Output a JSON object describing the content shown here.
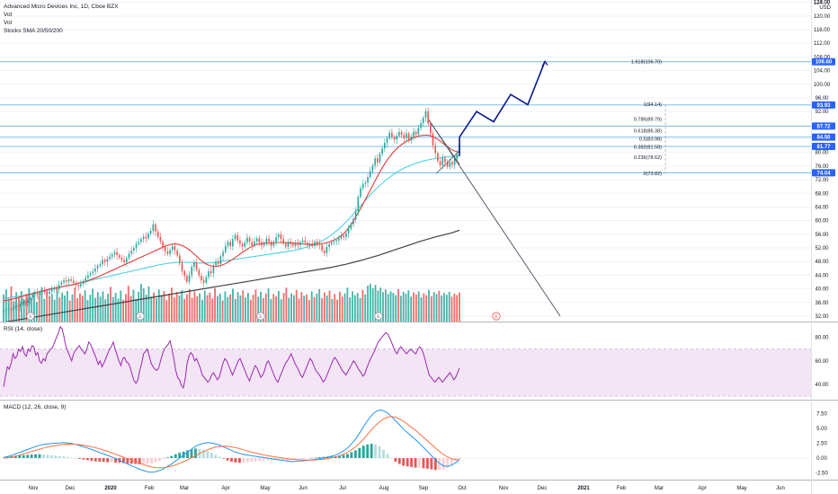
{
  "header": {
    "title": "Advanced Micro Devices Inc, 1D, Cboe BZX",
    "currency": "USD",
    "indicators": [
      "Vol",
      "Vol",
      "Stocks SMA 20/50/200"
    ]
  },
  "panes": {
    "rsi_label": "RSI (14, close)",
    "macd_label": "MACD (12, 26, close, 9)"
  },
  "colors": {
    "up": "#26a69a",
    "down": "#ef5350",
    "line_blue": "#2196f3",
    "sma_fast": "#e53935",
    "sma_mid": "#4dd0e1",
    "sma_slow": "#424242",
    "projection": "#0d1a8c",
    "rsi_line": "#9c27b0",
    "rsi_band": "#f3e5f5",
    "level_line": "#6fb8e8",
    "axis_badge": "#2962ff"
  },
  "chart_data": [
    {
      "type": "line",
      "title": "Advanced Micro Devices Inc, 1D, Cboe BZX",
      "x_tick_labels": [
        "Nov",
        "Dec",
        "2020",
        "Feb",
        "Mar",
        "Apr",
        "May",
        "Jun",
        "Jul",
        "Aug",
        "Sep",
        "Oct",
        "Nov",
        "Dec",
        "2021",
        "Feb",
        "Mar",
        "Apr",
        "May",
        "Jun"
      ],
      "y_tick_labels": [
        "32.00",
        "36.00",
        "40.00",
        "44.00",
        "48.00",
        "52.00",
        "56.00",
        "60.00",
        "64.00",
        "68.00",
        "72.00",
        "76.00",
        "80.00",
        "84.00",
        "88.00",
        "92.00",
        "96.00",
        "100.00",
        "104.00",
        "108.00",
        "112.00",
        "116.00",
        "120.00",
        "124.00"
      ],
      "ylim": [
        30,
        128
      ],
      "top_tick_label": "128.00",
      "horizontal_levels": [
        106.6,
        93.93,
        87.72,
        84.5,
        81.77,
        74.04
      ],
      "fibonacci": [
        {
          "label": "1.618(106.70)",
          "value": 106.7
        },
        {
          "label": "1(94.14)",
          "value": 94.14
        },
        {
          "label": "0.786(89.79)",
          "value": 89.79
        },
        {
          "label": "0.618(86.38)",
          "value": 86.38
        },
        {
          "label": "0.5(83.98)",
          "value": 83.98
        },
        {
          "label": "0.382(81.58)",
          "value": 81.58
        },
        {
          "label": "0.236(78.62)",
          "value": 78.62
        },
        {
          "label": "0(73.82)",
          "value": 73.82
        }
      ],
      "event_markers": [
        "E",
        "E",
        "E",
        "E",
        "E"
      ],
      "projection_path": [
        [
          0,
          84.5
        ],
        [
          4,
          92
        ],
        [
          8,
          89
        ],
        [
          12,
          97
        ],
        [
          16,
          94
        ],
        [
          20,
          106.7
        ]
      ],
      "closes": [
        33.5,
        33.8,
        34.2,
        33.9,
        34.5,
        35,
        34.8,
        35.6,
        36.2,
        35.9,
        36.8,
        37.5,
        38.4,
        38.9,
        38.2,
        39,
        39.5,
        39.1,
        38.6,
        39.2,
        39.8,
        40.3,
        39.9,
        41.2,
        41.9,
        42.5,
        42.1,
        42.8,
        42.4,
        41.8,
        41.2,
        40.8,
        41.5,
        42.3,
        43.2,
        44,
        44.6,
        45.1,
        46,
        46.8,
        47.2,
        48.5,
        47.9,
        48.8,
        49.4,
        50.1,
        50.8,
        49.9,
        49.2,
        48.5,
        47.8,
        49,
        50.3,
        51.2,
        52,
        53.2,
        53.8,
        54.6,
        55.3,
        54.8,
        56.2,
        57,
        58.9,
        56.8,
        55.2,
        53.9,
        52.3,
        51,
        50.2,
        51.4,
        52.5,
        51.3,
        49.8,
        47.6,
        45.2,
        43.8,
        42.1,
        44,
        46.5,
        47.8,
        45.6,
        43.9,
        42.5,
        41.8,
        43.5,
        45.2,
        44.6,
        46.9,
        48,
        47.3,
        49.6,
        50.8,
        52.6,
        53.8,
        52.5,
        54.6,
        55.8,
        54.2,
        53.2,
        52.4,
        53.6,
        55,
        53.8,
        52.6,
        53.9,
        54.8,
        53.6,
        52.7,
        53.4,
        54.7,
        53.8,
        52.6,
        53.5,
        55.2,
        56,
        54.6,
        53.3,
        52.4,
        53.8,
        53.2,
        52.6,
        53.5,
        52.8,
        53.7,
        54.2,
        53.6,
        52.8,
        53.3,
        52.6,
        53.9,
        53.4,
        52.9,
        51.2,
        50.5,
        52.3,
        53.1,
        53.6,
        53.9,
        54.2,
        54.8,
        55.6,
        55.2,
        56.3,
        57.6,
        58.9,
        60.4,
        62.8,
        67,
        69.5,
        70.8,
        71.2,
        72.8,
        74.5,
        76.2,
        78.3,
        77.1,
        79.6,
        81.2,
        82.8,
        84.2,
        85.8,
        84.6,
        83.8,
        84.9,
        86,
        85.1,
        84.2,
        85.6,
        83.4,
        84.6,
        86.1,
        85.3,
        87.2,
        88.6,
        90.2,
        92.1,
        88.4,
        85.6,
        82.1,
        79.8,
        77.5,
        76.2,
        78.4,
        77.1,
        75.8,
        77.2,
        76.4,
        78.1,
        79.6,
        82.3
      ],
      "sma20": [
        36.5,
        36.7,
        36.9,
        37.2,
        37.5,
        37.8,
        38.1,
        38.4,
        38.7,
        39,
        39.3,
        39.6,
        39.9,
        40.1,
        40.3,
        40.5,
        40.7,
        40.9,
        41.1,
        41.3,
        41.6,
        41.9,
        42.2,
        42.6,
        43,
        43.4,
        43.9,
        44.4,
        44.9,
        45.4,
        45.9,
        46.4,
        46.9,
        47.4,
        47.9,
        48.4,
        48.9,
        49.4,
        49.9,
        50.4,
        50.9,
        51.4,
        51.9,
        52.4,
        52.8,
        53.1,
        53.2,
        53,
        52.6,
        52,
        51.2,
        50.2,
        49.2,
        48.2,
        47.4,
        46.9,
        46.6,
        46.6,
        46.8,
        47.2,
        47.8,
        48.5,
        49.2,
        50,
        50.8,
        51.5,
        52.2,
        52.7,
        53.1,
        53.3,
        53.4,
        53.4,
        53.5,
        53.6,
        53.6,
        53.6,
        53.5,
        53.5,
        53.4,
        53.3,
        53.2,
        53.1,
        53,
        53,
        53.1,
        53.2,
        53.4,
        53.7,
        54.1,
        54.6,
        55.3,
        56.2,
        57.4,
        58.9,
        60.6,
        62.5,
        64.5,
        66.6,
        68.7,
        70.8,
        72.9,
        74.9,
        76.7,
        78.3,
        79.7,
        80.9,
        81.9,
        82.7,
        83.4,
        84,
        84.5,
        84.8,
        85,
        85.1,
        85,
        84.6,
        84,
        83.2,
        82.3,
        81.5,
        80.8,
        80.3,
        80
      ],
      "sma50": [
        37.2,
        37.4,
        37.6,
        37.8,
        38,
        38.2,
        38.5,
        38.8,
        39.1,
        39.4,
        39.7,
        40,
        40.3,
        40.6,
        40.9,
        41.2,
        41.5,
        41.8,
        42.1,
        42.4,
        42.7,
        43,
        43.3,
        43.6,
        43.9,
        44.2,
        44.5,
        44.8,
        45.1,
        45.4,
        45.7,
        46,
        46.3,
        46.6,
        46.9,
        47.2,
        47.4,
        47.6,
        47.7,
        47.8,
        47.8,
        47.8,
        47.7,
        47.6,
        47.6,
        47.6,
        47.7,
        47.8,
        48,
        48.2,
        48.4,
        48.6,
        48.8,
        49,
        49.2,
        49.4,
        49.6,
        49.8,
        50,
        50.2,
        50.4,
        50.6,
        50.8,
        51,
        51.2,
        51.5,
        51.8,
        52.2,
        52.6,
        53.1,
        53.7,
        54.4,
        55.2,
        56.2,
        57.3,
        58.5,
        59.8,
        61.2,
        62.7,
        64.2,
        65.7,
        67.2,
        68.6,
        69.9,
        71.1,
        72.2,
        73.2,
        74.1,
        74.9,
        75.6,
        76.2,
        76.7,
        77.1,
        77.5,
        77.8,
        78.1,
        78.3,
        78.5,
        78.7,
        78.8,
        78.9,
        79
      ],
      "sma200": [
        30.2,
        30.6,
        31,
        31.4,
        31.8,
        32.2,
        32.6,
        33,
        33.4,
        33.8,
        34.2,
        34.6,
        35,
        35.4,
        35.8,
        36.2,
        36.6,
        37,
        37.4,
        37.8,
        38.2,
        38.6,
        39,
        39.4,
        39.8,
        40.2,
        40.6,
        41,
        41.4,
        41.8,
        42.2,
        42.6,
        43,
        43.4,
        43.8,
        44.2,
        44.6,
        45,
        45.4,
        45.8,
        46.2,
        46.7,
        47.2,
        47.8,
        48.4,
        49.1,
        49.8,
        50.6,
        51.4,
        52.2,
        53,
        53.8,
        54.5,
        55.2,
        55.8,
        56.4,
        57.2
      ],
      "volume": [
        0.72,
        0.85,
        0.61,
        0.93,
        0.55,
        0.78,
        0.66,
        0.81,
        0.59,
        0.74,
        0.88,
        0.63,
        0.79,
        0.52,
        0.7,
        0.91,
        0.6,
        0.84,
        0.67,
        0.73,
        0.58,
        0.86,
        0.64,
        0.77,
        0.69,
        0.81,
        0.56,
        0.72,
        0.9,
        0.62,
        0.75,
        0.68,
        0.83,
        0.57,
        0.71,
        0.87,
        0.63,
        0.78,
        0.66,
        0.8,
        0.59,
        0.74,
        0.92,
        0.65,
        0.76,
        0.61,
        0.82,
        0.58,
        0.73,
        0.95,
        0.68,
        0.84,
        0.6,
        0.79,
        1.0,
        0.88,
        0.71,
        0.93,
        0.66,
        0.77,
        0.62,
        0.85,
        0.7,
        0.81,
        0.57,
        0.74,
        0.9,
        0.64,
        0.78,
        0.69,
        0.83,
        0.6,
        0.72,
        0.86,
        0.63,
        0.8,
        0.67,
        0.75,
        0.58,
        0.82,
        0.7,
        0.77,
        0.61,
        0.89,
        0.68,
        0.74,
        0.56,
        0.8,
        0.65,
        0.72,
        0.87,
        0.6,
        0.78,
        0.69,
        0.83,
        0.64,
        0.76,
        0.58,
        0.71,
        0.85,
        0.66,
        0.79,
        0.62,
        0.74,
        0.88,
        0.6,
        0.73,
        0.67,
        0.81,
        0.59,
        0.76,
        0.9,
        0.63,
        0.75,
        0.7,
        0.84,
        0.61,
        0.78,
        0.68,
        0.72,
        0.57,
        0.8,
        0.65,
        0.74,
        0.86,
        0.62,
        0.77,
        0.69,
        0.82,
        0.6,
        0.73,
        0.58,
        0.79,
        0.66,
        0.75,
        0.9,
        0.64,
        0.8,
        0.7,
        0.76,
        0.62,
        0.84,
        0.72,
        0.95,
        1.0,
        0.88,
        0.97,
        0.82,
        0.9,
        0.78,
        0.85,
        0.73,
        0.8,
        0.76,
        0.7,
        0.86,
        0.68,
        0.79,
        0.74,
        0.83,
        0.66,
        0.77,
        0.72,
        0.8,
        0.64,
        0.75,
        0.7,
        0.84,
        0.67,
        0.78,
        0.73,
        0.81,
        0.69,
        0.76,
        0.71,
        0.79,
        0.66,
        0.74,
        0.7,
        0.77
      ]
    },
    {
      "type": "line",
      "title": "RSI (14, close)",
      "y_tick_labels": [
        "40.00",
        "60.00",
        "80.00"
      ],
      "ylim": [
        28,
        90
      ],
      "band": [
        30,
        70
      ],
      "values": [
        38,
        47,
        55,
        53,
        58,
        66,
        62,
        64,
        70,
        68,
        72,
        66,
        64,
        70,
        68,
        73,
        72,
        65,
        67,
        60,
        58,
        62,
        60,
        66,
        68,
        70,
        72,
        76,
        80,
        84,
        89,
        87,
        80,
        72,
        68,
        64,
        60,
        66,
        69,
        71,
        73,
        70,
        68,
        66,
        70,
        76,
        74,
        70,
        66,
        62,
        57,
        60,
        55,
        58,
        62,
        66,
        70,
        72,
        76,
        70,
        65,
        60,
        56,
        62,
        63,
        59,
        58,
        54,
        48,
        43,
        41,
        44,
        52,
        58,
        66,
        68,
        70,
        64,
        58,
        55,
        53,
        52,
        54,
        60,
        66,
        70,
        72,
        74,
        77,
        70,
        62,
        52,
        46,
        44,
        39,
        37,
        45,
        58,
        64,
        67,
        65,
        60,
        62,
        58,
        54,
        48,
        46,
        44,
        42,
        44,
        48,
        50,
        47,
        44,
        46,
        52,
        58,
        62,
        60,
        56,
        52,
        48,
        52,
        56,
        60,
        62,
        58,
        54,
        50,
        46,
        43,
        48,
        52,
        56,
        54,
        50,
        46,
        48,
        52,
        58,
        60,
        56,
        52,
        48,
        44,
        42,
        46,
        50,
        54,
        58,
        60,
        63,
        66,
        62,
        58,
        55,
        52,
        48,
        46,
        50,
        54,
        58,
        62,
        60,
        56,
        52,
        50,
        48,
        45,
        42,
        44,
        48,
        52,
        56,
        60,
        63,
        61,
        58,
        55,
        52,
        50,
        48,
        51,
        54,
        57,
        60,
        58,
        55,
        52,
        50,
        47,
        49,
        54,
        58,
        62,
        65,
        68,
        72,
        76,
        78,
        80,
        82,
        84,
        83,
        80,
        76,
        72,
        68,
        66,
        70,
        72,
        70,
        68,
        66,
        68,
        70,
        69,
        67,
        66,
        70,
        72,
        70,
        66,
        60,
        54,
        48,
        46,
        44,
        42,
        44,
        46,
        44,
        42,
        44,
        46,
        48,
        50,
        47,
        44,
        46,
        50,
        54
      ]
    },
    {
      "type": "bar",
      "title": "MACD (12, 26, close, 9)",
      "y_tick_labels": [
        "-2.50",
        "0.00",
        "2.50",
        "5.00",
        "7.50"
      ],
      "ylim": [
        -3.5,
        9
      ],
      "macd": [
        0.1,
        0.25,
        0.45,
        0.7,
        0.95,
        1.2,
        1.45,
        1.7,
        1.95,
        2.15,
        2.3,
        2.4,
        2.45,
        2.5,
        2.55,
        2.6,
        2.55,
        2.45,
        2.3,
        2.1,
        1.9,
        1.7,
        1.45,
        1.2,
        0.95,
        0.7,
        0.45,
        0.2,
        -0.1,
        -0.4,
        -0.7,
        -1,
        -1.3,
        -1.6,
        -1.9,
        -2.1,
        -2.3,
        -2.4,
        -2.3,
        -2.1,
        -1.8,
        -1.4,
        -1,
        -0.5,
        0,
        0.5,
        1,
        1.5,
        2,
        2.3,
        2.5,
        2.6,
        2.55,
        2.4,
        2.2,
        1.9,
        1.6,
        1.3,
        1,
        0.8,
        0.6,
        0.5,
        0.4,
        0.3,
        0.2,
        0.1,
        0,
        -0.1,
        -0.2,
        -0.3,
        -0.4,
        -0.5,
        -0.6,
        -0.55,
        -0.5,
        -0.45,
        -0.4,
        -0.3,
        -0.2,
        -0.1,
        0,
        0.15,
        0.3,
        0.5,
        0.8,
        1.2,
        1.7,
        2.4,
        3.2,
        4.2,
        5.3,
        6.3,
        7.2,
        7.8,
        8.1,
        8.0,
        7.6,
        7.0,
        6.3,
        5.6,
        4.9,
        4.3,
        3.7,
        3.1,
        2.5,
        1.8,
        1.1,
        0.4,
        -0.3,
        -0.9,
        -1.3,
        -1.4,
        -1.2,
        -0.8,
        -0.3
      ],
      "signal": [
        0,
        0.05,
        0.15,
        0.3,
        0.5,
        0.7,
        0.9,
        1.1,
        1.3,
        1.5,
        1.7,
        1.85,
        2,
        2.1,
        2.2,
        2.3,
        2.35,
        2.35,
        2.3,
        2.25,
        2.15,
        2.05,
        1.9,
        1.75,
        1.55,
        1.35,
        1.15,
        0.9,
        0.65,
        0.4,
        0.15,
        -0.1,
        -0.35,
        -0.6,
        -0.85,
        -1.1,
        -1.3,
        -1.5,
        -1.6,
        -1.65,
        -1.6,
        -1.5,
        -1.35,
        -1.15,
        -0.9,
        -0.6,
        -0.3,
        0.05,
        0.4,
        0.75,
        1.1,
        1.4,
        1.65,
        1.85,
        1.95,
        2,
        2,
        1.9,
        1.75,
        1.6,
        1.4,
        1.2,
        1,
        0.85,
        0.7,
        0.55,
        0.4,
        0.3,
        0.2,
        0.1,
        0,
        -0.1,
        -0.2,
        -0.25,
        -0.3,
        -0.32,
        -0.33,
        -0.32,
        -0.3,
        -0.25,
        -0.2,
        -0.1,
        0.05,
        0.2,
        0.4,
        0.65,
        1,
        1.4,
        1.9,
        2.5,
        3.2,
        4,
        4.8,
        5.5,
        6.1,
        6.6,
        6.9,
        7,
        6.9,
        6.6,
        6.2,
        5.7,
        5.2,
        4.7,
        4.1,
        3.5,
        2.9,
        2.3,
        1.7,
        1.1,
        0.6,
        0.2,
        -0.1,
        -0.25,
        -0.3
      ]
    }
  ]
}
